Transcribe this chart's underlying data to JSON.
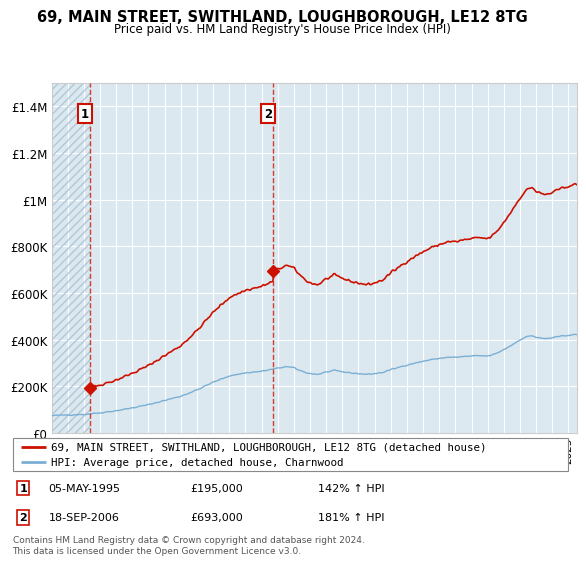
{
  "title1": "69, MAIN STREET, SWITHLAND, LOUGHBOROUGH, LE12 8TG",
  "title2": "Price paid vs. HM Land Registry's House Price Index (HPI)",
  "ylim": [
    0,
    1500000
  ],
  "yticks": [
    0,
    200000,
    400000,
    600000,
    800000,
    1000000,
    1200000,
    1400000
  ],
  "ytick_labels": [
    "£0",
    "£200K",
    "£400K",
    "£600K",
    "£800K",
    "£1M",
    "£1.2M",
    "£1.4M"
  ],
  "sale1_date_num": 1995.35,
  "sale1_price": 195000,
  "sale2_date_num": 2006.72,
  "sale2_price": 693000,
  "hpi_color": "#7bafd4",
  "price_color": "#cc1100",
  "grid_color": "#cccccc",
  "bg_color": "#dce8f0",
  "hatch_color": "#b0c8d8",
  "legend_label1": "69, MAIN STREET, SWITHLAND, LOUGHBOROUGH, LE12 8TG (detached house)",
  "legend_label2": "HPI: Average price, detached house, Charnwood",
  "note1_date": "05-MAY-1995",
  "note1_price": "£195,000",
  "note1_hpi": "142% ↑ HPI",
  "note2_date": "18-SEP-2006",
  "note2_price": "£693,000",
  "note2_hpi": "181% ↑ HPI",
  "footer": "Contains HM Land Registry data © Crown copyright and database right 2024.\nThis data is licensed under the Open Government Licence v3.0."
}
